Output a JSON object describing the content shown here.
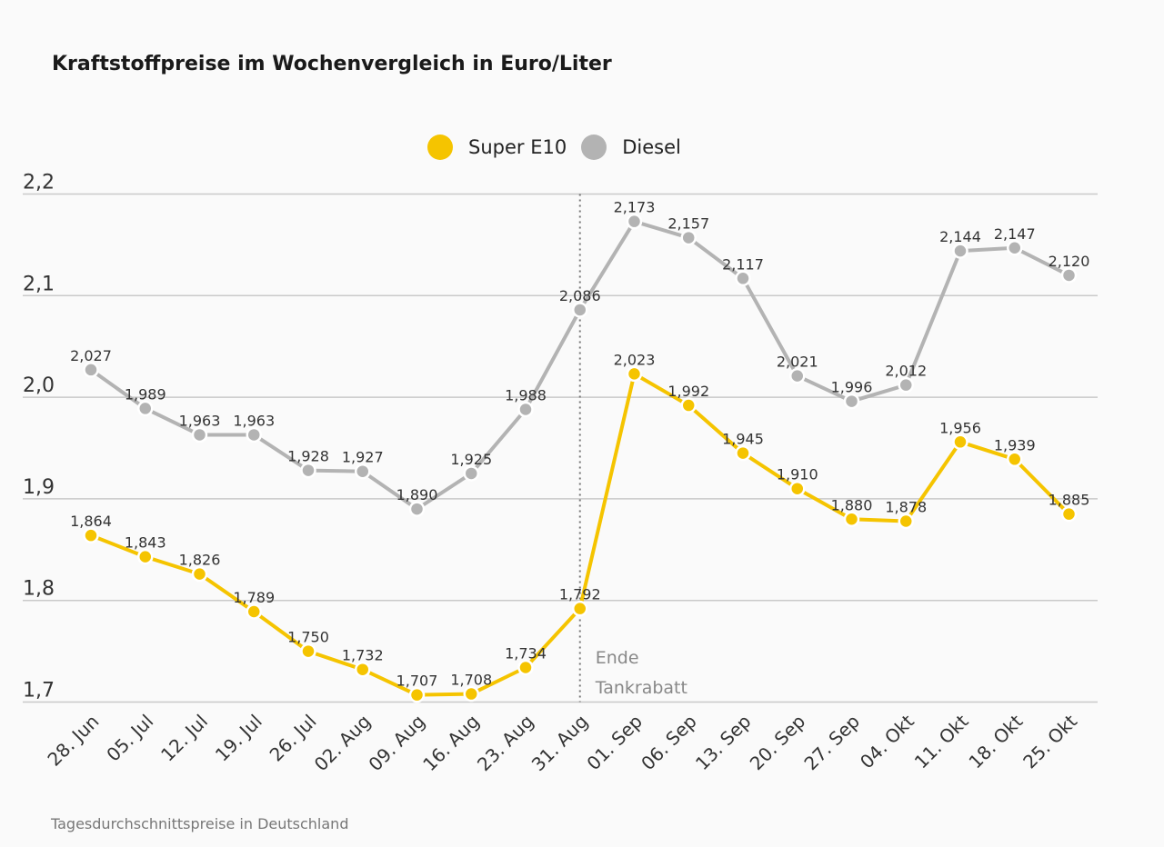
{
  "chart_data": {
    "type": "line",
    "title": "Kraftstoffpreise im Wochenvergleich in Euro/Liter",
    "footnote": "Tagesdurchschnittspreise in Deutschland",
    "categories": [
      "28. Jun",
      "05. Jul",
      "12. Jul",
      "19. Jul",
      "26. Jul",
      "02. Aug",
      "09. Aug",
      "16. Aug",
      "23. Aug",
      "31. Aug",
      "01. Sep",
      "06. Sep",
      "13. Sep",
      "20. Sep",
      "27. Sep",
      "04. Okt",
      "11. Okt",
      "18. Okt",
      "25. Okt"
    ],
    "series": [
      {
        "name": "Super E10",
        "color": "#f5c400",
        "values": [
          1.864,
          1.843,
          1.826,
          1.789,
          1.75,
          1.732,
          1.707,
          1.708,
          1.734,
          1.792,
          2.023,
          1.992,
          1.945,
          1.91,
          1.88,
          1.878,
          1.956,
          1.939,
          1.885
        ],
        "labels": [
          "1,864",
          "1,843",
          "1,826",
          "1,789",
          "1,750",
          "1,732",
          "1,707",
          "1,708",
          "1,734",
          "1,792",
          "2,023",
          "1,992",
          "1,945",
          "1,910",
          "1,880",
          "1,878",
          "1,956",
          "1,939",
          "1,885"
        ]
      },
      {
        "name": "Diesel",
        "color": "#b3b3b3",
        "values": [
          2.027,
          1.989,
          1.963,
          1.963,
          1.928,
          1.927,
          1.89,
          1.925,
          1.988,
          2.086,
          2.173,
          2.157,
          2.117,
          2.021,
          1.996,
          2.012,
          2.144,
          2.147,
          2.12
        ],
        "labels": [
          "2,027",
          "1,989",
          "1,963",
          "1,963",
          "1,928",
          "1,927",
          "1,890",
          "1,925",
          "1,988",
          "2,086",
          "2,173",
          "2,157",
          "2,117",
          "2,021",
          "1,996",
          "2,012",
          "2,144",
          "2,147",
          "2,120"
        ]
      }
    ],
    "y_ticks": [
      1.7,
      1.8,
      1.9,
      2.0,
      2.1,
      2.2
    ],
    "y_tick_labels": [
      "1,7",
      "1,8",
      "1,9",
      "2,0",
      "2,1",
      "2,2"
    ],
    "ylim": [
      1.7,
      2.2
    ],
    "grid": true,
    "legend_position": "top-center",
    "annotation": {
      "at_category": "31. Aug",
      "lines": [
        "Ende",
        "Tankrabatt"
      ]
    }
  }
}
